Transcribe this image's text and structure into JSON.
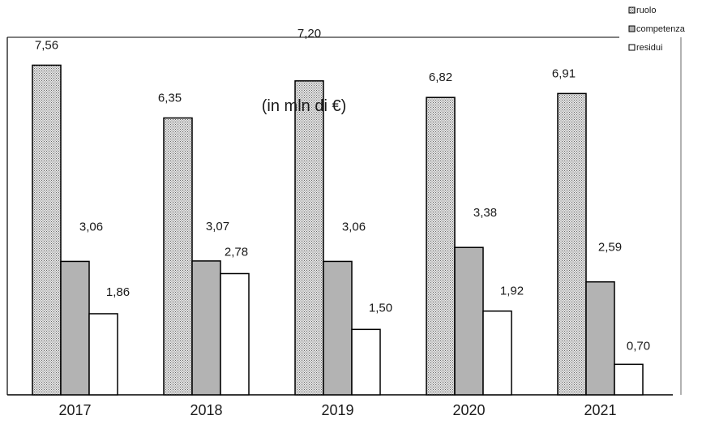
{
  "chart_data": {
    "type": "bar",
    "unit_label": "(in mln di €)",
    "categories": [
      "2017",
      "2018",
      "2019",
      "2020",
      "2021"
    ],
    "series": [
      {
        "name": "ruolo",
        "values": [
          7.56,
          6.35,
          7.2,
          6.82,
          6.91
        ],
        "labels": [
          "7,56",
          "6,35",
          "7,20",
          "6,82",
          "6,91"
        ],
        "fill": "pattern-dots"
      },
      {
        "name": "competenza",
        "values": [
          3.06,
          3.07,
          3.06,
          3.38,
          2.59
        ],
        "labels": [
          "3,06",
          "3,07",
          "3,06",
          "3,38",
          "2,59"
        ],
        "fill": "#b3b3b3"
      },
      {
        "name": "residui",
        "values": [
          1.86,
          2.78,
          1.5,
          1.92,
          0.7
        ],
        "labels": [
          "1,86",
          "2,78",
          "1,50",
          "1,92",
          "0,70"
        ],
        "fill": "#ffffff"
      }
    ],
    "ylim": [
      0,
      8.2
    ],
    "grid": false,
    "legend": "top-right"
  }
}
